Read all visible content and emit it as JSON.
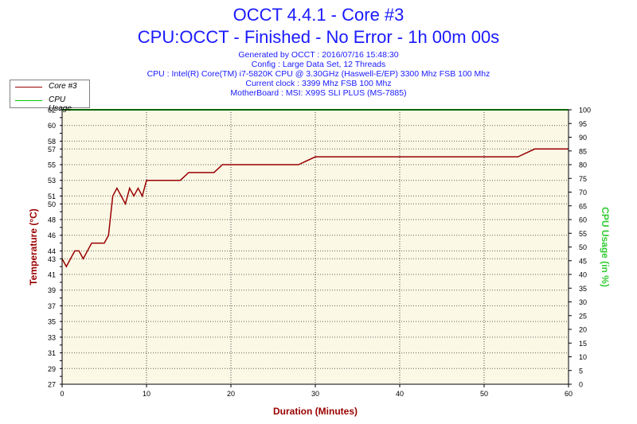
{
  "header": {
    "title": "OCCT 4.4.1 - Core #3",
    "subtitle": "CPU:OCCT - Finished - No Error - 1h 00m 00s",
    "info_lines": [
      "Generated by OCCT : 2016/07/16 15:48:30",
      "Config : Large Data Set, 12 Threads",
      "CPU : Intel(R) Core(TM) i7-5820K CPU @ 3.30GHz (Haswell-E/EP) 3300 Mhz FSB 100 Mhz",
      "Current clock : 3399 Mhz FSB 100 Mhz",
      "MotherBoard : MSI: X99S SLI PLUS (MS-7885)"
    ]
  },
  "legend": {
    "items": [
      {
        "label": "Core #3",
        "color": "#990000"
      },
      {
        "label": "CPU Usage",
        "color": "#00cc00"
      }
    ]
  },
  "colors": {
    "plot_background": "#fbf8e6",
    "temperature": "#990000",
    "cpu_usage": "#00cc00",
    "axis_title_temp": "#990000",
    "axis_title_usage": "#33cc33",
    "axis_title_x": "#990000",
    "grid": "#000000"
  },
  "chart_data": {
    "type": "line",
    "xlabel": "Duration (Minutes)",
    "ylabel": "Temperature (°C)",
    "y2label": "CPU Usage (in %)",
    "xlim": [
      0,
      60
    ],
    "ylim": [
      27,
      62
    ],
    "y2lim": [
      0,
      100
    ],
    "x_ticks": [
      0,
      10,
      20,
      30,
      40,
      50,
      60
    ],
    "y_ticks": [
      27,
      28,
      29,
      30,
      31,
      32,
      33,
      34,
      35,
      36,
      37,
      38,
      39,
      40,
      41,
      42,
      43,
      44,
      45,
      46,
      47,
      48,
      49,
      50,
      51,
      52,
      53,
      54,
      55,
      56,
      57,
      58,
      59,
      60,
      61,
      62
    ],
    "y_tick_labels": [
      27,
      29,
      31,
      33,
      35,
      37,
      39,
      41,
      43,
      44,
      46,
      48,
      50,
      51,
      53,
      55,
      57,
      58,
      60,
      62
    ],
    "y2_ticks": [
      0,
      5,
      10,
      15,
      20,
      25,
      30,
      35,
      40,
      45,
      50,
      55,
      60,
      65,
      70,
      75,
      80,
      85,
      90,
      95,
      100
    ],
    "grid": true,
    "legend_position": "top-left",
    "series": [
      {
        "name": "Core #3",
        "axis": "left",
        "x": [
          0,
          0.5,
          1,
          1.5,
          2,
          2.5,
          3,
          3.5,
          4,
          4.5,
          5,
          5.5,
          6,
          6.5,
          7,
          7.5,
          8,
          8.5,
          9,
          9.5,
          10,
          11,
          12,
          13,
          14,
          15,
          16,
          17,
          18,
          19,
          20,
          22,
          24,
          26,
          28,
          30,
          32,
          34,
          36,
          38,
          40,
          42,
          44,
          46,
          48,
          50,
          52,
          54,
          56,
          58,
          60
        ],
        "y": [
          43,
          42,
          43,
          44,
          44,
          43,
          44,
          45,
          45,
          45,
          45,
          46,
          51,
          52,
          51,
          50,
          52,
          51,
          52,
          51,
          53,
          53,
          53,
          53,
          53,
          54,
          54,
          54,
          54,
          55,
          55,
          55,
          55,
          55,
          55,
          56,
          56,
          56,
          56,
          56,
          56,
          56,
          56,
          56,
          56,
          56,
          56,
          56,
          57,
          57,
          57
        ]
      },
      {
        "name": "CPU Usage",
        "axis": "right",
        "x": [
          0,
          60
        ],
        "y": [
          100,
          100
        ]
      }
    ]
  }
}
